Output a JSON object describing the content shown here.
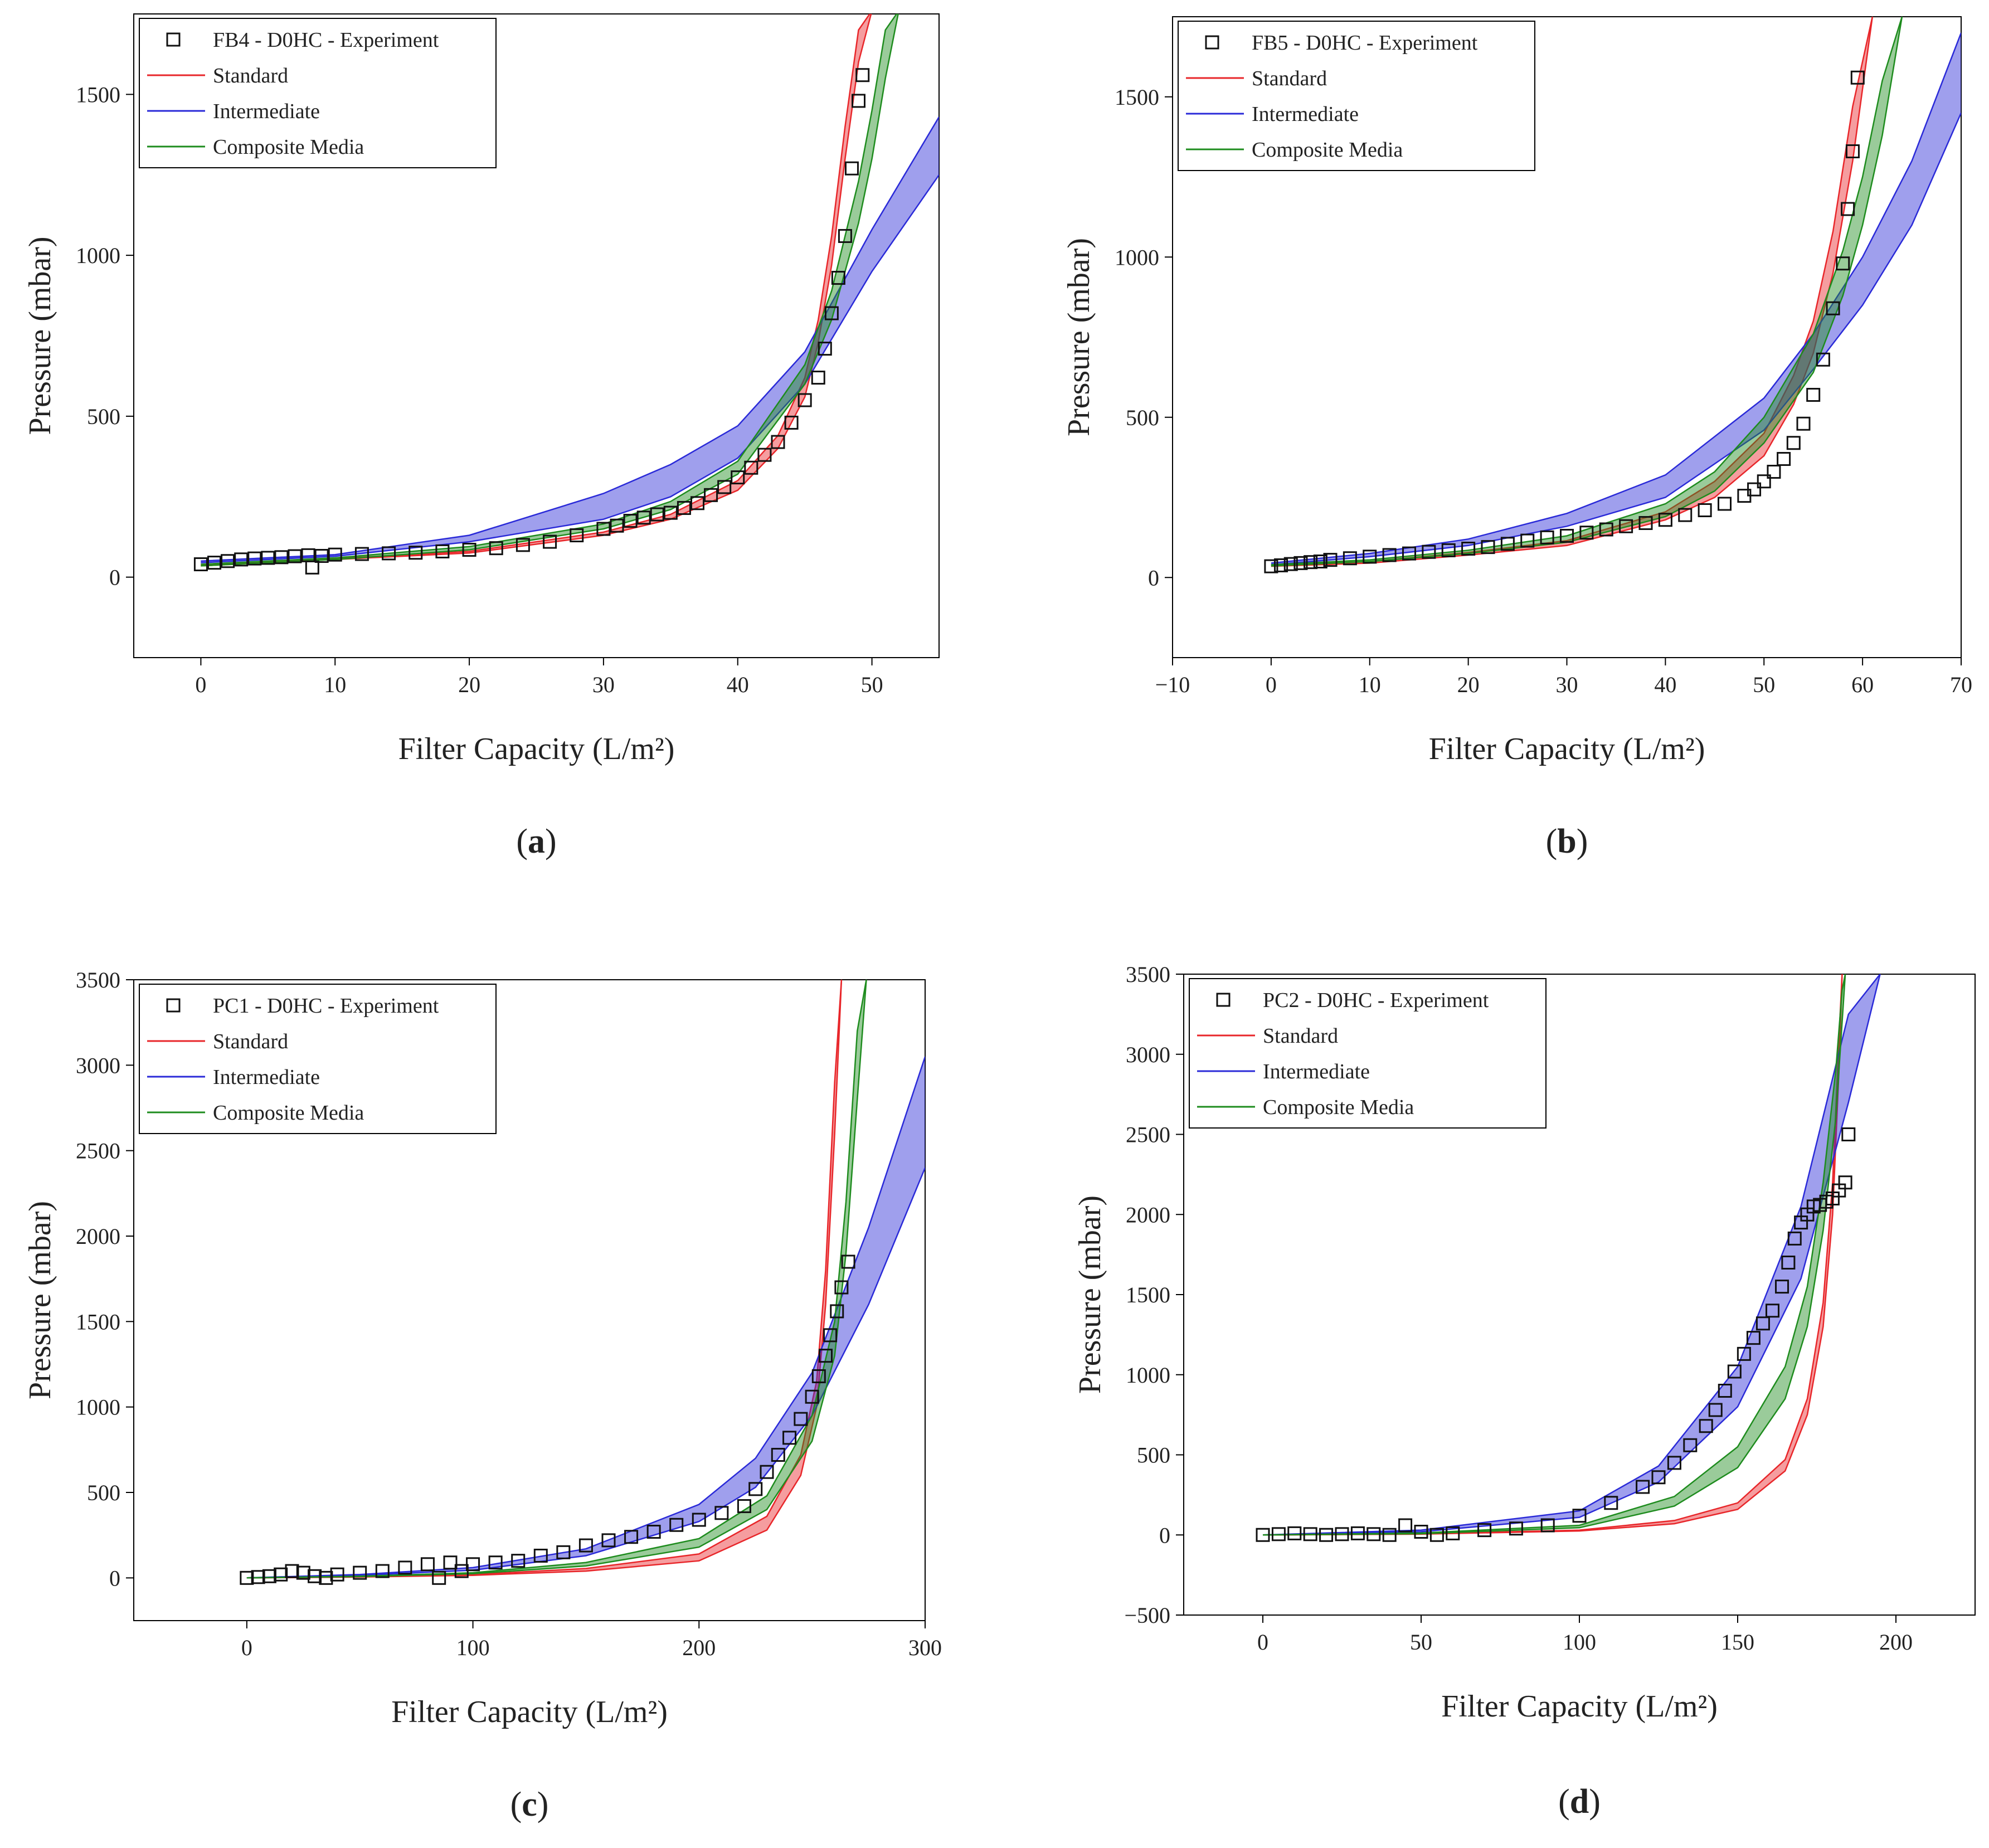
{
  "figure": {
    "panels": [
      {
        "letter": "a",
        "caption": "(a)"
      },
      {
        "letter": "b",
        "caption": "(b)"
      },
      {
        "letter": "c",
        "caption": "(c)"
      },
      {
        "letter": "d",
        "caption": "(d)"
      }
    ]
  },
  "colors": {
    "standard": "#e8262a",
    "intermediate": "#2a2ad8",
    "composite": "#1e8c1e",
    "experiment": "#111111",
    "band_alpha": 0.45
  },
  "chart_data": [
    {
      "type": "scatter",
      "xlabel": "Filter Capacity (L/m²)",
      "ylabel": "Pressure (mbar)",
      "xlim": [
        -5,
        55
      ],
      "ylim": [
        -250,
        1750
      ],
      "xticks": [
        0,
        10,
        20,
        30,
        40,
        50
      ],
      "yticks": [
        0,
        500,
        1000,
        1500
      ],
      "legend": [
        "FB4 - D0HC - Experiment",
        "Standard",
        "Intermediate",
        "Composite Media"
      ],
      "legend_position": "top-left",
      "experiment": {
        "x": [
          0,
          1,
          2,
          3,
          4,
          5,
          6,
          7,
          8,
          8.3,
          9,
          10,
          12,
          14,
          16,
          18,
          20,
          22,
          24,
          26,
          28,
          30,
          31,
          32,
          33,
          34,
          35,
          36,
          37,
          38,
          39,
          40,
          41,
          42,
          43,
          44,
          45,
          46,
          46.5,
          47,
          47.5,
          48,
          48.5,
          49,
          49.3
        ],
        "y": [
          40,
          45,
          50,
          55,
          58,
          60,
          62,
          65,
          68,
          30,
          66,
          70,
          72,
          74,
          76,
          80,
          85,
          90,
          100,
          110,
          130,
          150,
          160,
          175,
          185,
          195,
          200,
          215,
          230,
          255,
          280,
          310,
          340,
          380,
          420,
          480,
          550,
          620,
          710,
          820,
          930,
          1060,
          1270,
          1480,
          1560
        ]
      },
      "series": [
        {
          "name": "Standard",
          "x": [
            0,
            10,
            20,
            30,
            35,
            40,
            43,
            45,
            46,
            47,
            48,
            49,
            50
          ],
          "lower": [
            35,
            55,
            75,
            130,
            180,
            270,
            400,
            560,
            730,
            970,
            1300,
            1600,
            1760
          ],
          "upper": [
            38,
            58,
            80,
            140,
            195,
            300,
            440,
            620,
            800,
            1060,
            1400,
            1700,
            1760
          ]
        },
        {
          "name": "Intermediate",
          "x": [
            0,
            10,
            20,
            30,
            35,
            40,
            45,
            50,
            55
          ],
          "lower": [
            45,
            65,
            110,
            180,
            250,
            370,
            600,
            950,
            1250
          ],
          "upper": [
            50,
            70,
            130,
            260,
            350,
            470,
            700,
            1080,
            1430
          ]
        },
        {
          "name": "Composite Media",
          "x": [
            0,
            10,
            20,
            30,
            35,
            40,
            45,
            47,
            49,
            50,
            51,
            52
          ],
          "lower": [
            35,
            55,
            85,
            150,
            210,
            320,
            600,
            800,
            1100,
            1300,
            1550,
            1760
          ],
          "upper": [
            40,
            60,
            95,
            165,
            235,
            360,
            660,
            890,
            1230,
            1450,
            1700,
            1760
          ]
        }
      ]
    },
    {
      "type": "scatter",
      "xlabel": "Filter Capacity (L/m²)",
      "ylabel": "Pressure (mbar)",
      "xlim": [
        -10,
        70
      ],
      "ylim": [
        -250,
        1750
      ],
      "xticks": [
        -10,
        0,
        10,
        20,
        30,
        40,
        50,
        60,
        70
      ],
      "yticks": [
        0,
        500,
        1000,
        1500
      ],
      "legend": [
        "FB5 - D0HC - Experiment",
        "Standard",
        "Intermediate",
        "Composite Media"
      ],
      "legend_position": "top-left",
      "experiment": {
        "x": [
          0,
          1,
          2,
          3,
          4,
          5,
          6,
          8,
          10,
          12,
          14,
          16,
          18,
          20,
          22,
          24,
          26,
          28,
          30,
          32,
          34,
          36,
          38,
          40,
          42,
          44,
          46,
          48,
          49,
          50,
          51,
          52,
          53,
          54,
          55,
          56,
          57,
          58,
          58.5,
          59,
          59.5
        ],
        "y": [
          35,
          38,
          42,
          45,
          48,
          50,
          55,
          60,
          65,
          70,
          75,
          80,
          85,
          90,
          95,
          105,
          115,
          125,
          130,
          140,
          150,
          160,
          170,
          180,
          195,
          210,
          230,
          255,
          275,
          300,
          330,
          370,
          420,
          480,
          570,
          680,
          840,
          980,
          1150,
          1330,
          1560
        ]
      },
      "series": [
        {
          "name": "Standard",
          "x": [
            0,
            10,
            20,
            30,
            40,
            45,
            50,
            53,
            55,
            57,
            59,
            61
          ],
          "lower": [
            35,
            45,
            70,
            100,
            180,
            250,
            380,
            540,
            700,
            950,
            1300,
            1750
          ],
          "upper": [
            38,
            50,
            78,
            115,
            205,
            300,
            450,
            630,
            800,
            1080,
            1470,
            1750
          ]
        },
        {
          "name": "Intermediate",
          "x": [
            0,
            10,
            20,
            30,
            40,
            50,
            55,
            60,
            65,
            70
          ],
          "lower": [
            40,
            65,
            100,
            160,
            250,
            460,
            650,
            850,
            1100,
            1450
          ],
          "upper": [
            45,
            75,
            120,
            200,
            320,
            560,
            760,
            1000,
            1300,
            1700
          ]
        },
        {
          "name": "Composite Media",
          "x": [
            0,
            10,
            20,
            30,
            40,
            45,
            50,
            55,
            58,
            60,
            62,
            64
          ],
          "lower": [
            36,
            50,
            75,
            110,
            190,
            270,
            420,
            640,
            880,
            1100,
            1380,
            1750
          ],
          "upper": [
            40,
            55,
            85,
            130,
            230,
            330,
            500,
            760,
            1020,
            1250,
            1550,
            1750
          ]
        }
      ]
    },
    {
      "type": "scatter",
      "xlabel": "Filter Capacity (L/m²)",
      "ylabel": "Pressure (mbar)",
      "xlim": [
        -50,
        300
      ],
      "ylim": [
        -250,
        3500
      ],
      "xticks": [
        0,
        100,
        200,
        300
      ],
      "yticks": [
        0,
        500,
        1000,
        1500,
        2000,
        2500,
        3000,
        3500
      ],
      "legend": [
        "PC1 - D0HC - Experiment",
        "Standard",
        "Intermediate",
        "Composite Media"
      ],
      "legend_position": "top-left",
      "experiment": {
        "x": [
          0,
          5,
          10,
          15,
          20,
          25,
          30,
          35,
          40,
          50,
          60,
          70,
          80,
          85,
          90,
          95,
          100,
          110,
          120,
          130,
          140,
          150,
          160,
          170,
          180,
          190,
          200,
          210,
          220,
          225,
          230,
          235,
          240,
          245,
          250,
          253,
          256,
          258,
          261,
          263,
          266
        ],
        "y": [
          0,
          5,
          10,
          20,
          40,
          30,
          10,
          0,
          20,
          30,
          40,
          60,
          80,
          0,
          90,
          40,
          80,
          90,
          100,
          130,
          150,
          190,
          220,
          240,
          270,
          310,
          340,
          380,
          420,
          520,
          620,
          720,
          820,
          930,
          1060,
          1180,
          1300,
          1420,
          1560,
          1700,
          1850
        ]
      },
      "series": [
        {
          "name": "Standard",
          "x": [
            0,
            50,
            100,
            150,
            200,
            230,
            245,
            252,
            256,
            260,
            263
          ],
          "lower": [
            0,
            5,
            15,
            40,
            100,
            280,
            600,
            1000,
            1600,
            2600,
            3500
          ],
          "upper": [
            0,
            6,
            20,
            55,
            140,
            360,
            720,
            1150,
            1800,
            2900,
            3500
          ]
        },
        {
          "name": "Intermediate",
          "x": [
            0,
            50,
            100,
            150,
            200,
            225,
            250,
            275,
            300
          ],
          "lower": [
            0,
            15,
            45,
            130,
            330,
            530,
            950,
            1600,
            2400
          ],
          "upper": [
            0,
            20,
            60,
            170,
            430,
            700,
            1200,
            2050,
            3050
          ]
        },
        {
          "name": "Composite Media",
          "x": [
            0,
            50,
            100,
            150,
            200,
            230,
            250,
            260,
            265,
            270,
            274
          ],
          "lower": [
            0,
            8,
            25,
            70,
            180,
            400,
            800,
            1300,
            1900,
            2800,
            3500
          ],
          "upper": [
            0,
            10,
            30,
            90,
            230,
            480,
            950,
            1500,
            2200,
            3200,
            3500
          ]
        }
      ]
    },
    {
      "type": "scatter",
      "xlabel": "Filter Capacity (L/m²)",
      "ylabel": "Pressure (mbar)",
      "xlim": [
        -25,
        225
      ],
      "ylim": [
        -500,
        3500
      ],
      "xticks": [
        0,
        50,
        100,
        150,
        200
      ],
      "yticks": [
        -500,
        0,
        500,
        1000,
        1500,
        2000,
        2500,
        3000,
        3500
      ],
      "legend": [
        "PC2 - D0HC - Experiment",
        "Standard",
        "Intermediate",
        "Composite Media"
      ],
      "legend_position": "top-left",
      "experiment": {
        "x": [
          0,
          5,
          10,
          15,
          20,
          25,
          30,
          35,
          40,
          45,
          50,
          55,
          60,
          70,
          80,
          90,
          100,
          110,
          120,
          125,
          130,
          135,
          140,
          143,
          146,
          149,
          152,
          155,
          158,
          161,
          164,
          166,
          168,
          170,
          172,
          174,
          176,
          178,
          180,
          182,
          184,
          185
        ],
        "y": [
          0,
          5,
          10,
          5,
          0,
          5,
          10,
          5,
          0,
          60,
          20,
          0,
          10,
          30,
          40,
          60,
          120,
          200,
          300,
          360,
          450,
          560,
          680,
          780,
          900,
          1020,
          1130,
          1230,
          1320,
          1400,
          1550,
          1700,
          1850,
          1950,
          2000,
          2050,
          2060,
          2080,
          2100,
          2150,
          2200,
          2500
        ]
      },
      "series": [
        {
          "name": "Standard",
          "x": [
            0,
            50,
            100,
            130,
            150,
            165,
            172,
            177,
            180,
            182,
            183
          ],
          "lower": [
            0,
            5,
            25,
            70,
            160,
            400,
            750,
            1300,
            2000,
            2900,
            3500
          ],
          "upper": [
            0,
            6,
            30,
            90,
            200,
            470,
            850,
            1450,
            2200,
            3100,
            3500
          ]
        },
        {
          "name": "Intermediate",
          "x": [
            0,
            50,
            100,
            125,
            150,
            170,
            185,
            195
          ],
          "lower": [
            0,
            20,
            110,
            330,
            800,
            1600,
            2700,
            3500
          ],
          "upper": [
            0,
            30,
            150,
            430,
            1050,
            2050,
            3250,
            3500
          ]
        },
        {
          "name": "Composite Media",
          "x": [
            0,
            50,
            100,
            130,
            150,
            165,
            172,
            177,
            181,
            183,
            184
          ],
          "lower": [
            0,
            8,
            45,
            180,
            420,
            850,
            1300,
            1900,
            2600,
            3200,
            3500
          ],
          "upper": [
            0,
            12,
            60,
            240,
            550,
            1050,
            1550,
            2200,
            2900,
            3400,
            3500
          ]
        }
      ]
    }
  ]
}
